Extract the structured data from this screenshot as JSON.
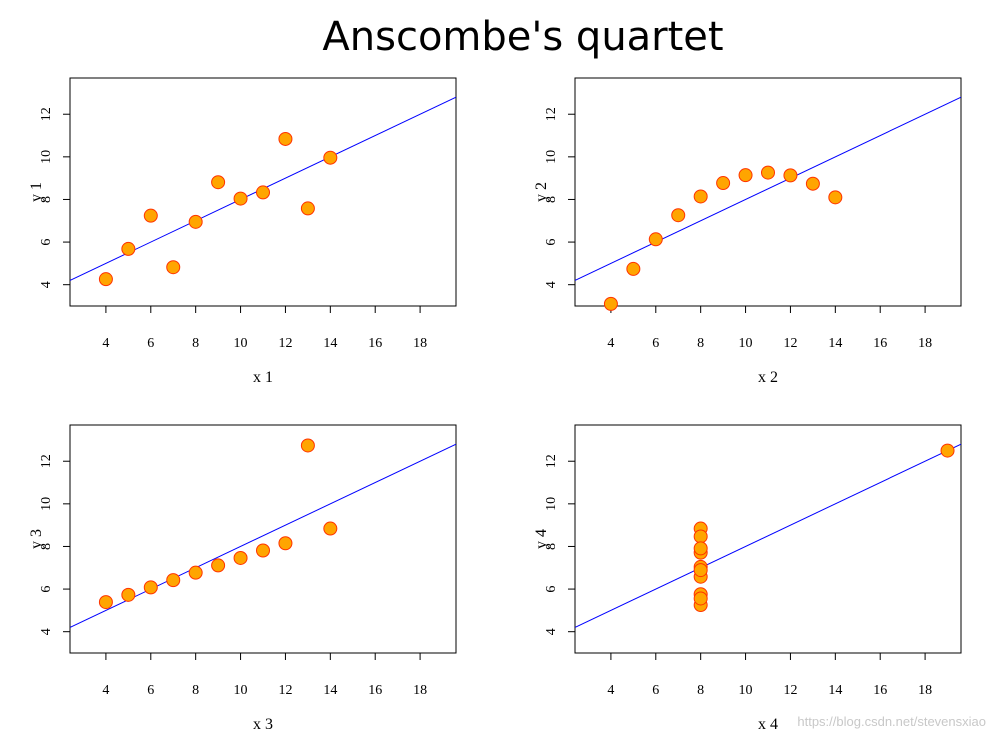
{
  "title": "Anscombe's quartet",
  "watermark": "https://blog.csdn.net/stevensxiao",
  "colors": {
    "point_fill": "#FFA500",
    "point_stroke": "#FF3300",
    "fit_line": "#0000FF",
    "axes": "#000000",
    "background": "#FFFFFF"
  },
  "chart_data": [
    {
      "type": "scatter",
      "title": "",
      "xlabel": "x  1",
      "ylabel": "y  1",
      "xlim": [
        2.4,
        19.6
      ],
      "ylim": [
        3,
        13.7
      ],
      "xticks": [
        4,
        6,
        8,
        10,
        12,
        14,
        16,
        18
      ],
      "yticks": [
        4,
        6,
        8,
        10,
        12
      ],
      "x": [
        10,
        8,
        13,
        9,
        11,
        14,
        6,
        4,
        12,
        7,
        5
      ],
      "y": [
        8.04,
        6.95,
        7.58,
        8.81,
        8.33,
        9.96,
        7.24,
        4.26,
        10.84,
        4.82,
        5.68
      ],
      "fit_line": {
        "intercept": 3.0,
        "slope": 0.5
      }
    },
    {
      "type": "scatter",
      "title": "",
      "xlabel": "x  2",
      "ylabel": "y  2",
      "xlim": [
        2.4,
        19.6
      ],
      "ylim": [
        3,
        13.7
      ],
      "xticks": [
        4,
        6,
        8,
        10,
        12,
        14,
        16,
        18
      ],
      "yticks": [
        4,
        6,
        8,
        10,
        12
      ],
      "x": [
        10,
        8,
        13,
        9,
        11,
        14,
        6,
        4,
        12,
        7,
        5
      ],
      "y": [
        9.14,
        8.14,
        8.74,
        8.77,
        9.26,
        8.1,
        6.13,
        3.1,
        9.13,
        7.26,
        4.74
      ],
      "fit_line": {
        "intercept": 3.0,
        "slope": 0.5
      }
    },
    {
      "type": "scatter",
      "title": "",
      "xlabel": "x  3",
      "ylabel": "y  3",
      "xlim": [
        2.4,
        19.6
      ],
      "ylim": [
        3,
        13.7
      ],
      "xticks": [
        4,
        6,
        8,
        10,
        12,
        14,
        16,
        18
      ],
      "yticks": [
        4,
        6,
        8,
        10,
        12
      ],
      "x": [
        10,
        8,
        13,
        9,
        11,
        14,
        6,
        4,
        12,
        7,
        5
      ],
      "y": [
        7.46,
        6.77,
        12.74,
        7.11,
        7.81,
        8.84,
        6.08,
        5.39,
        8.15,
        6.42,
        5.73
      ],
      "fit_line": {
        "intercept": 3.0,
        "slope": 0.5
      }
    },
    {
      "type": "scatter",
      "title": "",
      "xlabel": "x  4",
      "ylabel": "y  4",
      "xlim": [
        2.4,
        19.6
      ],
      "ylim": [
        3,
        13.7
      ],
      "xticks": [
        4,
        6,
        8,
        10,
        12,
        14,
        16,
        18
      ],
      "yticks": [
        4,
        6,
        8,
        10,
        12
      ],
      "x": [
        8,
        8,
        8,
        8,
        8,
        8,
        8,
        19,
        8,
        8,
        8
      ],
      "y": [
        6.58,
        5.76,
        7.71,
        8.84,
        8.47,
        7.04,
        5.25,
        12.5,
        5.56,
        7.91,
        6.89
      ],
      "fit_line": {
        "intercept": 3.0,
        "slope": 0.5
      }
    }
  ]
}
